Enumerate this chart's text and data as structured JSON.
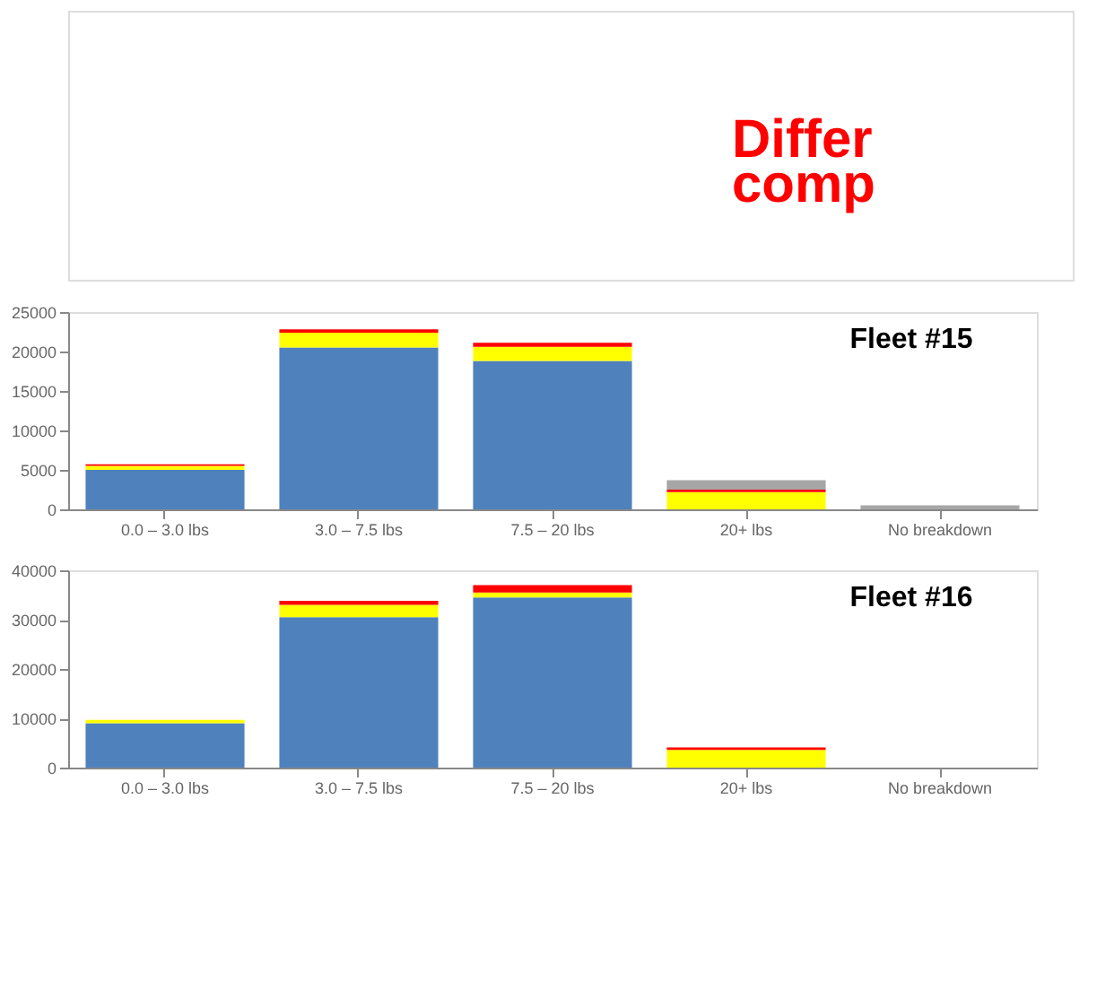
{
  "chart_data": [
    {
      "type": "bar",
      "stacked": true,
      "title": "Fleet #15",
      "annotations": [
        "Differ",
        "comp"
      ],
      "categories": [
        "0.0 – 3.0 lbs",
        "3.0 – 7.5 lbs",
        "7.5 – 20 lbs",
        "20+ lbs",
        "No breakdown"
      ],
      "series": [
        {
          "color": "#4f81bd",
          "values": [
            5000,
            20500,
            18800,
            null,
            null
          ]
        },
        {
          "color": "#ffff00",
          "values": [
            500,
            1900,
            1800,
            2200,
            null
          ]
        },
        {
          "color": "#ff0000",
          "values": [
            200,
            400,
            500,
            300,
            null
          ]
        },
        {
          "color": "#a6a6a6",
          "values": [
            null,
            null,
            null,
            1200,
            500
          ]
        }
      ],
      "ylim": [
        0,
        25000
      ],
      "yticks": [
        0,
        5000,
        10000,
        15000,
        20000,
        25000
      ],
      "grid": false
    },
    {
      "type": "bar",
      "stacked": true,
      "title": "Fleet #16",
      "categories": [
        "0.0 – 3.0 lbs",
        "3.0 – 7.5 lbs",
        "7.5 – 20 lbs",
        "20+ lbs",
        "No breakdown"
      ],
      "series": [
        {
          "color": "#4f81bd",
          "values": [
            9000,
            30500,
            34500,
            null,
            null
          ]
        },
        {
          "color": "#ffff00",
          "values": [
            700,
            2500,
            1000,
            3600,
            null
          ]
        },
        {
          "color": "#ff0000",
          "values": [
            null,
            800,
            1500,
            500,
            null
          ]
        }
      ],
      "ylim": [
        0,
        40000
      ],
      "yticks": [
        0,
        10000,
        20000,
        30000,
        40000
      ],
      "grid": false
    }
  ]
}
